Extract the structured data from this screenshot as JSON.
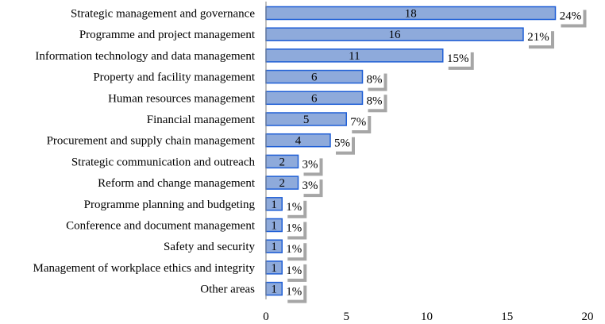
{
  "chart_data": {
    "type": "bar",
    "orientation": "horizontal",
    "categories": [
      "Strategic management and governance",
      "Programme and project management",
      "Information technology and data management",
      "Property and facility management",
      "Human resources management",
      "Financial management",
      "Procurement and supply chain management",
      "Strategic communication and outreach",
      "Reform and change management",
      "Programme planning and budgeting",
      "Conference and document management",
      "Safety and security",
      "Management of workplace ethics and integrity",
      "Other areas"
    ],
    "values": [
      18,
      16,
      11,
      6,
      6,
      5,
      4,
      2,
      2,
      1,
      1,
      1,
      1,
      1
    ],
    "value_labels": [
      "18",
      "16",
      "11",
      "6",
      "6",
      "5",
      "4",
      "2",
      "2",
      "1",
      "1",
      "1",
      "1",
      "1"
    ],
    "percent_labels": [
      "24%",
      "21%",
      "15%",
      "8%",
      "8%",
      "7%",
      "5%",
      "3%",
      "3%",
      "1%",
      "1%",
      "1%",
      "1%",
      "1%"
    ],
    "xlim": [
      0,
      20
    ],
    "xticks": [
      0,
      5,
      10,
      15,
      20
    ],
    "xtick_labels": [
      "0",
      "5",
      "10",
      "15",
      "20"
    ],
    "grid": false,
    "bar_fill": "#8eaadb",
    "bar_stroke": "#1f5fd6",
    "label_box_fill": "#ffffff",
    "label_box_shadow": "#a6a6a6"
  }
}
